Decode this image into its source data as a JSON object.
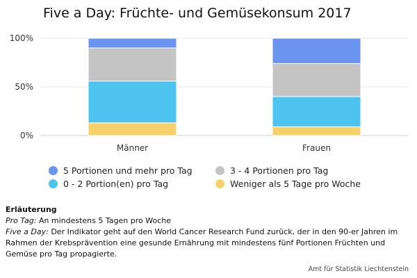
{
  "chart_data": {
    "type": "bar",
    "stacked": true,
    "percent": true,
    "title": "Five a Day: Früchte- und Gemüsekonsum 2017",
    "categories": [
      "Männer",
      "Frauen"
    ],
    "series": [
      {
        "name": "Weniger als 5 Tage pro Woche",
        "color": "#f5d06b",
        "values": [
          13,
          9
        ]
      },
      {
        "name": "0 - 2 Portion(en) pro Tag",
        "color": "#4ec3f0",
        "values": [
          43,
          31
        ]
      },
      {
        "name": "3 - 4 Portionen pro Tag",
        "color": "#c4c4c4",
        "values": [
          34,
          34
        ]
      },
      {
        "name": "5 Portionen und mehr pro Tag",
        "color": "#6b93f0",
        "values": [
          10,
          26
        ]
      }
    ],
    "ylim": [
      0,
      100
    ],
    "yticks": [
      "0%",
      "50%",
      "100%"
    ],
    "ytick_values": [
      0,
      50,
      100
    ],
    "grid": true,
    "legend_position": "bottom"
  },
  "legend": [
    {
      "label": "5 Portionen und mehr pro Tag",
      "color": "#6b93f0"
    },
    {
      "label": "3 - 4 Portionen pro Tag",
      "color": "#c4c4c4"
    },
    {
      "label": "0 - 2 Portion(en) pro Tag",
      "color": "#4ec3f0"
    },
    {
      "label": "Weniger als 5 Tage pro Woche",
      "color": "#f5d06b"
    }
  ],
  "notes": {
    "heading": "Erläuterung",
    "items": [
      {
        "term": "Pro Tag:",
        "text": " An mindestens 5 Tagen pro Woche"
      },
      {
        "term": "Five a Day:",
        "text": " Der Indikator geht auf den World Cancer Research Fund zurück, der in den 90-er Jahren im Rahmen der Krebsprävention eine gesunde Ernährung mit mindestens fünf Portionen Früchten und Gemüse pro Tag propagierte."
      }
    ]
  },
  "source": "Amt für Statistik Liechtenstein"
}
